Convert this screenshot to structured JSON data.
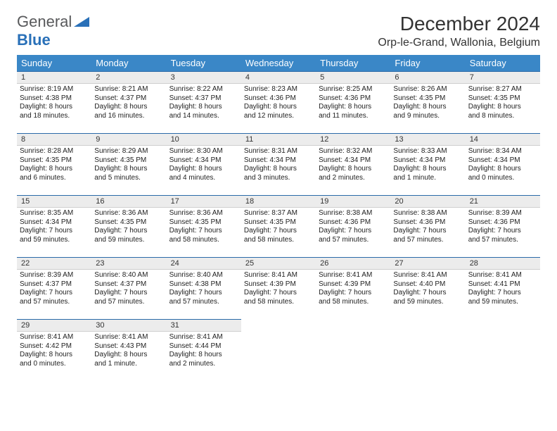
{
  "logo": {
    "part1": "General",
    "part2": "Blue"
  },
  "title": "December 2024",
  "location": "Orp-le-Grand, Wallonia, Belgium",
  "header_color": "#3a87c7",
  "daynum_bg": "#ececec",
  "daynum_border_top": "#2a6aa8",
  "weekdays": [
    "Sunday",
    "Monday",
    "Tuesday",
    "Wednesday",
    "Thursday",
    "Friday",
    "Saturday"
  ],
  "weeks": [
    [
      {
        "n": "1",
        "sr": "Sunrise: 8:19 AM",
        "ss": "Sunset: 4:38 PM",
        "d1": "Daylight: 8 hours",
        "d2": "and 18 minutes."
      },
      {
        "n": "2",
        "sr": "Sunrise: 8:21 AM",
        "ss": "Sunset: 4:37 PM",
        "d1": "Daylight: 8 hours",
        "d2": "and 16 minutes."
      },
      {
        "n": "3",
        "sr": "Sunrise: 8:22 AM",
        "ss": "Sunset: 4:37 PM",
        "d1": "Daylight: 8 hours",
        "d2": "and 14 minutes."
      },
      {
        "n": "4",
        "sr": "Sunrise: 8:23 AM",
        "ss": "Sunset: 4:36 PM",
        "d1": "Daylight: 8 hours",
        "d2": "and 12 minutes."
      },
      {
        "n": "5",
        "sr": "Sunrise: 8:25 AM",
        "ss": "Sunset: 4:36 PM",
        "d1": "Daylight: 8 hours",
        "d2": "and 11 minutes."
      },
      {
        "n": "6",
        "sr": "Sunrise: 8:26 AM",
        "ss": "Sunset: 4:35 PM",
        "d1": "Daylight: 8 hours",
        "d2": "and 9 minutes."
      },
      {
        "n": "7",
        "sr": "Sunrise: 8:27 AM",
        "ss": "Sunset: 4:35 PM",
        "d1": "Daylight: 8 hours",
        "d2": "and 8 minutes."
      }
    ],
    [
      {
        "n": "8",
        "sr": "Sunrise: 8:28 AM",
        "ss": "Sunset: 4:35 PM",
        "d1": "Daylight: 8 hours",
        "d2": "and 6 minutes."
      },
      {
        "n": "9",
        "sr": "Sunrise: 8:29 AM",
        "ss": "Sunset: 4:35 PM",
        "d1": "Daylight: 8 hours",
        "d2": "and 5 minutes."
      },
      {
        "n": "10",
        "sr": "Sunrise: 8:30 AM",
        "ss": "Sunset: 4:34 PM",
        "d1": "Daylight: 8 hours",
        "d2": "and 4 minutes."
      },
      {
        "n": "11",
        "sr": "Sunrise: 8:31 AM",
        "ss": "Sunset: 4:34 PM",
        "d1": "Daylight: 8 hours",
        "d2": "and 3 minutes."
      },
      {
        "n": "12",
        "sr": "Sunrise: 8:32 AM",
        "ss": "Sunset: 4:34 PM",
        "d1": "Daylight: 8 hours",
        "d2": "and 2 minutes."
      },
      {
        "n": "13",
        "sr": "Sunrise: 8:33 AM",
        "ss": "Sunset: 4:34 PM",
        "d1": "Daylight: 8 hours",
        "d2": "and 1 minute."
      },
      {
        "n": "14",
        "sr": "Sunrise: 8:34 AM",
        "ss": "Sunset: 4:34 PM",
        "d1": "Daylight: 8 hours",
        "d2": "and 0 minutes."
      }
    ],
    [
      {
        "n": "15",
        "sr": "Sunrise: 8:35 AM",
        "ss": "Sunset: 4:34 PM",
        "d1": "Daylight: 7 hours",
        "d2": "and 59 minutes."
      },
      {
        "n": "16",
        "sr": "Sunrise: 8:36 AM",
        "ss": "Sunset: 4:35 PM",
        "d1": "Daylight: 7 hours",
        "d2": "and 59 minutes."
      },
      {
        "n": "17",
        "sr": "Sunrise: 8:36 AM",
        "ss": "Sunset: 4:35 PM",
        "d1": "Daylight: 7 hours",
        "d2": "and 58 minutes."
      },
      {
        "n": "18",
        "sr": "Sunrise: 8:37 AM",
        "ss": "Sunset: 4:35 PM",
        "d1": "Daylight: 7 hours",
        "d2": "and 58 minutes."
      },
      {
        "n": "19",
        "sr": "Sunrise: 8:38 AM",
        "ss": "Sunset: 4:36 PM",
        "d1": "Daylight: 7 hours",
        "d2": "and 57 minutes."
      },
      {
        "n": "20",
        "sr": "Sunrise: 8:38 AM",
        "ss": "Sunset: 4:36 PM",
        "d1": "Daylight: 7 hours",
        "d2": "and 57 minutes."
      },
      {
        "n": "21",
        "sr": "Sunrise: 8:39 AM",
        "ss": "Sunset: 4:36 PM",
        "d1": "Daylight: 7 hours",
        "d2": "and 57 minutes."
      }
    ],
    [
      {
        "n": "22",
        "sr": "Sunrise: 8:39 AM",
        "ss": "Sunset: 4:37 PM",
        "d1": "Daylight: 7 hours",
        "d2": "and 57 minutes."
      },
      {
        "n": "23",
        "sr": "Sunrise: 8:40 AM",
        "ss": "Sunset: 4:37 PM",
        "d1": "Daylight: 7 hours",
        "d2": "and 57 minutes."
      },
      {
        "n": "24",
        "sr": "Sunrise: 8:40 AM",
        "ss": "Sunset: 4:38 PM",
        "d1": "Daylight: 7 hours",
        "d2": "and 57 minutes."
      },
      {
        "n": "25",
        "sr": "Sunrise: 8:41 AM",
        "ss": "Sunset: 4:39 PM",
        "d1": "Daylight: 7 hours",
        "d2": "and 58 minutes."
      },
      {
        "n": "26",
        "sr": "Sunrise: 8:41 AM",
        "ss": "Sunset: 4:39 PM",
        "d1": "Daylight: 7 hours",
        "d2": "and 58 minutes."
      },
      {
        "n": "27",
        "sr": "Sunrise: 8:41 AM",
        "ss": "Sunset: 4:40 PM",
        "d1": "Daylight: 7 hours",
        "d2": "and 59 minutes."
      },
      {
        "n": "28",
        "sr": "Sunrise: 8:41 AM",
        "ss": "Sunset: 4:41 PM",
        "d1": "Daylight: 7 hours",
        "d2": "and 59 minutes."
      }
    ],
    [
      {
        "n": "29",
        "sr": "Sunrise: 8:41 AM",
        "ss": "Sunset: 4:42 PM",
        "d1": "Daylight: 8 hours",
        "d2": "and 0 minutes."
      },
      {
        "n": "30",
        "sr": "Sunrise: 8:41 AM",
        "ss": "Sunset: 4:43 PM",
        "d1": "Daylight: 8 hours",
        "d2": "and 1 minute."
      },
      {
        "n": "31",
        "sr": "Sunrise: 8:41 AM",
        "ss": "Sunset: 4:44 PM",
        "d1": "Daylight: 8 hours",
        "d2": "and 2 minutes."
      },
      {
        "empty": true
      },
      {
        "empty": true
      },
      {
        "empty": true
      },
      {
        "empty": true
      }
    ]
  ]
}
